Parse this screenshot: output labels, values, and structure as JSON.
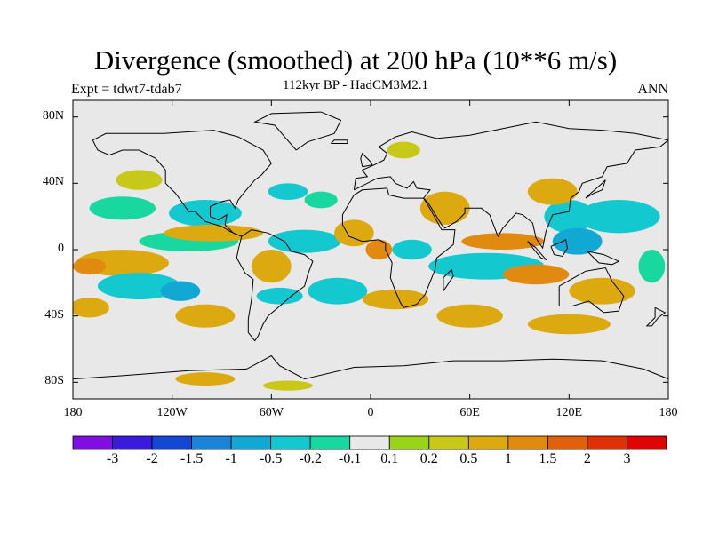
{
  "title": "Divergence (smoothed) at 200 hPa (10**6 m/s)",
  "subtitle": "112kyr BP - HadCM3M2.1",
  "experiment": "Expt = tdwt7-tdab7",
  "period": "ANN",
  "map": {
    "lat_ticks": [
      {
        "value": 80,
        "label": "80N"
      },
      {
        "value": 40,
        "label": "40N"
      },
      {
        "value": 0,
        "label": "0"
      },
      {
        "value": -40,
        "label": "40S"
      },
      {
        "value": -80,
        "label": "80S"
      }
    ],
    "lon_ticks": [
      {
        "value": -180,
        "label": "180"
      },
      {
        "value": -120,
        "label": "120W"
      },
      {
        "value": -60,
        "label": "60W"
      },
      {
        "value": 0,
        "label": "0"
      },
      {
        "value": 60,
        "label": "60E"
      },
      {
        "value": 120,
        "label": "120E"
      },
      {
        "value": 180,
        "label": "180"
      }
    ],
    "lon_range": [
      -180,
      180
    ],
    "lat_range": [
      -90,
      90
    ]
  },
  "colorbar": {
    "colors": [
      "#7e0fe0",
      "#3a1adc",
      "#1448d4",
      "#1a84d8",
      "#12a8d4",
      "#14c8d0",
      "#18d8a0",
      "#e8e8e8",
      "#9ad418",
      "#c8c818",
      "#dcaa10",
      "#e08a10",
      "#e0600c",
      "#e03008",
      "#e00404"
    ],
    "labels": [
      "-3",
      "-2",
      "-1.5",
      "-1",
      "-0.5",
      "-0.2",
      "-0.1",
      "0.1",
      "0.2",
      "0.5",
      "1",
      "1.5",
      "2",
      "3"
    ]
  },
  "fields": [
    {
      "name": "pos",
      "value": 0.2,
      "lon": -140,
      "lat": 42,
      "rx": 14,
      "ry": 6
    },
    {
      "name": "neg",
      "value": -0.2,
      "lon": -150,
      "lat": 25,
      "rx": 20,
      "ry": 7
    },
    {
      "name": "neg",
      "value": -0.5,
      "lon": -100,
      "lat": 22,
      "rx": 22,
      "ry": 8
    },
    {
      "name": "neg",
      "value": -0.5,
      "lon": -50,
      "lat": 35,
      "rx": 12,
      "ry": 5
    },
    {
      "name": "neg",
      "value": -0.2,
      "lon": -110,
      "lat": 5,
      "rx": 30,
      "ry": 6
    },
    {
      "name": "neg",
      "value": -0.5,
      "lon": -40,
      "lat": 5,
      "rx": 22,
      "ry": 7
    },
    {
      "name": "pos",
      "value": 0.5,
      "lon": -150,
      "lat": -8,
      "rx": 28,
      "ry": 8
    },
    {
      "name": "pos",
      "value": 1.0,
      "lon": -170,
      "lat": -10,
      "rx": 10,
      "ry": 5
    },
    {
      "name": "pos",
      "value": 0.5,
      "lon": -95,
      "lat": 10,
      "rx": 30,
      "ry": 5
    },
    {
      "name": "neg",
      "value": -0.5,
      "lon": -140,
      "lat": -22,
      "rx": 25,
      "ry": 8
    },
    {
      "name": "neg",
      "value": -1.0,
      "lon": -115,
      "lat": -25,
      "rx": 12,
      "ry": 6
    },
    {
      "name": "pos",
      "value": 0.5,
      "lon": -100,
      "lat": -40,
      "rx": 18,
      "ry": 7
    },
    {
      "name": "pos",
      "value": 0.5,
      "lon": -170,
      "lat": -35,
      "rx": 12,
      "ry": 6
    },
    {
      "name": "pos",
      "value": 0.5,
      "lon": -60,
      "lat": -10,
      "rx": 12,
      "ry": 10
    },
    {
      "name": "neg",
      "value": -0.5,
      "lon": -55,
      "lat": -28,
      "rx": 14,
      "ry": 5
    },
    {
      "name": "neg",
      "value": -0.5,
      "lon": -20,
      "lat": -25,
      "rx": 18,
      "ry": 8
    },
    {
      "name": "pos",
      "value": 0.5,
      "lon": -10,
      "lat": 10,
      "rx": 12,
      "ry": 8
    },
    {
      "name": "pos",
      "value": 1.0,
      "lon": 5,
      "lat": 0,
      "rx": 8,
      "ry": 6
    },
    {
      "name": "neg",
      "value": -0.5,
      "lon": 25,
      "lat": 0,
      "rx": 12,
      "ry": 6
    },
    {
      "name": "pos",
      "value": 0.5,
      "lon": 15,
      "lat": -30,
      "rx": 20,
      "ry": 6
    },
    {
      "name": "pos",
      "value": 0.5,
      "lon": 45,
      "lat": 25,
      "rx": 15,
      "ry": 10
    },
    {
      "name": "neg",
      "value": -0.5,
      "lon": 70,
      "lat": -10,
      "rx": 35,
      "ry": 8
    },
    {
      "name": "pos",
      "value": 1.0,
      "lon": 80,
      "lat": 5,
      "rx": 25,
      "ry": 5
    },
    {
      "name": "pos",
      "value": 1.0,
      "lon": 100,
      "lat": -15,
      "rx": 20,
      "ry": 6
    },
    {
      "name": "neg",
      "value": -0.5,
      "lon": 120,
      "lat": 20,
      "rx": 15,
      "ry": 10
    },
    {
      "name": "neg",
      "value": -1.0,
      "lon": 125,
      "lat": 5,
      "rx": 15,
      "ry": 8
    },
    {
      "name": "neg",
      "value": -0.5,
      "lon": 150,
      "lat": 20,
      "rx": 25,
      "ry": 10
    },
    {
      "name": "pos",
      "value": 0.5,
      "lon": 110,
      "lat": 35,
      "rx": 15,
      "ry": 8
    },
    {
      "name": "pos",
      "value": 0.5,
      "lon": 140,
      "lat": -25,
      "rx": 20,
      "ry": 8
    },
    {
      "name": "pos",
      "value": 0.5,
      "lon": 60,
      "lat": -40,
      "rx": 20,
      "ry": 7
    },
    {
      "name": "pos",
      "value": 0.5,
      "lon": 120,
      "lat": -45,
      "rx": 25,
      "ry": 6
    },
    {
      "name": "pos",
      "value": 0.5,
      "lon": -100,
      "lat": -78,
      "rx": 18,
      "ry": 4
    },
    {
      "name": "pos",
      "value": 0.2,
      "lon": -50,
      "lat": -82,
      "rx": 15,
      "ry": 3
    },
    {
      "name": "neg",
      "value": -0.2,
      "lon": -30,
      "lat": 30,
      "rx": 10,
      "ry": 5
    },
    {
      "name": "pos",
      "value": 0.2,
      "lon": 20,
      "lat": 60,
      "rx": 10,
      "ry": 5
    },
    {
      "name": "neg",
      "value": -0.2,
      "lon": 170,
      "lat": -10,
      "rx": 8,
      "ry": 10
    }
  ]
}
